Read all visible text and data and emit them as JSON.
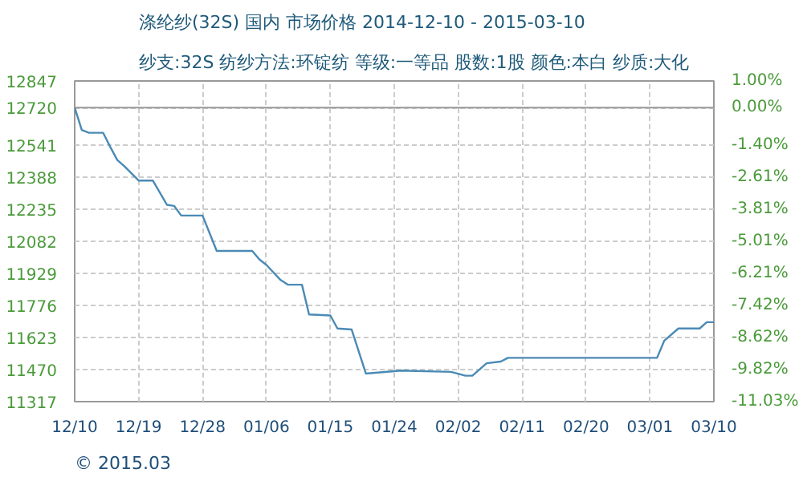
{
  "chart_data": {
    "type": "line",
    "title": "涤纶纱(32S) 国内 市场价格 2014-12-10 - 2015-03-10",
    "subtitle": "纱支:32S 纺纱方法:环锭纺 等级:一等品 股数:1股 颜色:本白 纱质:大化",
    "x": [
      "2014-12-10",
      "2014-12-11",
      "2014-12-12",
      "2014-12-14",
      "2014-12-15",
      "2014-12-16",
      "2014-12-17",
      "2014-12-19",
      "2014-12-21",
      "2014-12-23",
      "2014-12-24",
      "2014-12-25",
      "2014-12-28",
      "2014-12-30",
      "2015-01-04",
      "2015-01-05",
      "2015-01-06",
      "2015-01-08",
      "2015-01-09",
      "2015-01-11",
      "2015-01-12",
      "2015-01-15",
      "2015-01-16",
      "2015-01-18",
      "2015-01-20",
      "2015-01-25",
      "2015-02-01",
      "2015-02-03",
      "2015-02-04",
      "2015-02-06",
      "2015-02-08",
      "2015-02-09",
      "2015-03-02",
      "2015-03-03",
      "2015-03-05",
      "2015-03-08",
      "2015-03-09",
      "2015-03-10"
    ],
    "series": [
      {
        "color": "#4a8ab5",
        "values": [
          12720,
          12613,
          12600,
          12600,
          12533,
          12470,
          12440,
          12372,
          12372,
          12256,
          12251,
          12205,
          12205,
          12036,
          12036,
          11996,
          11969,
          11897,
          11875,
          11875,
          11733,
          11728,
          11666,
          11661,
          11451,
          11465,
          11459,
          11441,
          11441,
          11500,
          11508,
          11526,
          11526,
          11607,
          11666,
          11666,
          11696,
          11696
        ]
      }
    ],
    "xlim": [
      "2014-12-10",
      "2015-03-10"
    ],
    "xticks": [
      {
        "value": "2014-12-10",
        "label": "12/10"
      },
      {
        "value": "2014-12-19",
        "label": "12/19"
      },
      {
        "value": "2014-12-28",
        "label": "12/28"
      },
      {
        "value": "2015-01-06",
        "label": "01/06"
      },
      {
        "value": "2015-01-15",
        "label": "01/15"
      },
      {
        "value": "2015-01-24",
        "label": "01/24"
      },
      {
        "value": "2015-02-02",
        "label": "02/02"
      },
      {
        "value": "2015-02-11",
        "label": "02/11"
      },
      {
        "value": "2015-02-20",
        "label": "02/20"
      },
      {
        "value": "2015-03-01",
        "label": "03/01"
      },
      {
        "value": "2015-03-10",
        "label": "03/10"
      }
    ],
    "ylim": [
      11317,
      12847
    ],
    "yticks": [
      11317,
      11470,
      11623,
      11776,
      11929,
      12082,
      12235,
      12388,
      12541,
      12720,
      12847
    ],
    "y2lim": [
      -11.03,
      1.0
    ],
    "y2ticks": [
      {
        "value": -11.03,
        "label": "-11.03%"
      },
      {
        "value": -9.82,
        "label": "-9.82%"
      },
      {
        "value": -8.62,
        "label": "-8.62%"
      },
      {
        "value": -7.42,
        "label": "-7.42%"
      },
      {
        "value": -6.21,
        "label": "-6.21%"
      },
      {
        "value": -5.01,
        "label": "-5.01%"
      },
      {
        "value": -3.81,
        "label": "-3.81%"
      },
      {
        "value": -2.61,
        "label": "-2.61%"
      },
      {
        "value": -1.4,
        "label": "-1.40%"
      },
      {
        "value": 0,
        "label": "0.00%"
      },
      {
        "value": 1.0,
        "label": "1.00%"
      }
    ],
    "ref_lines": [
      {
        "axis": "y",
        "value": 12720,
        "color": "#999999",
        "line_style": "solid"
      }
    ],
    "grid": true,
    "marker": "none",
    "line_style": "solid",
    "annotations": [
      "© 2015.03"
    ]
  }
}
